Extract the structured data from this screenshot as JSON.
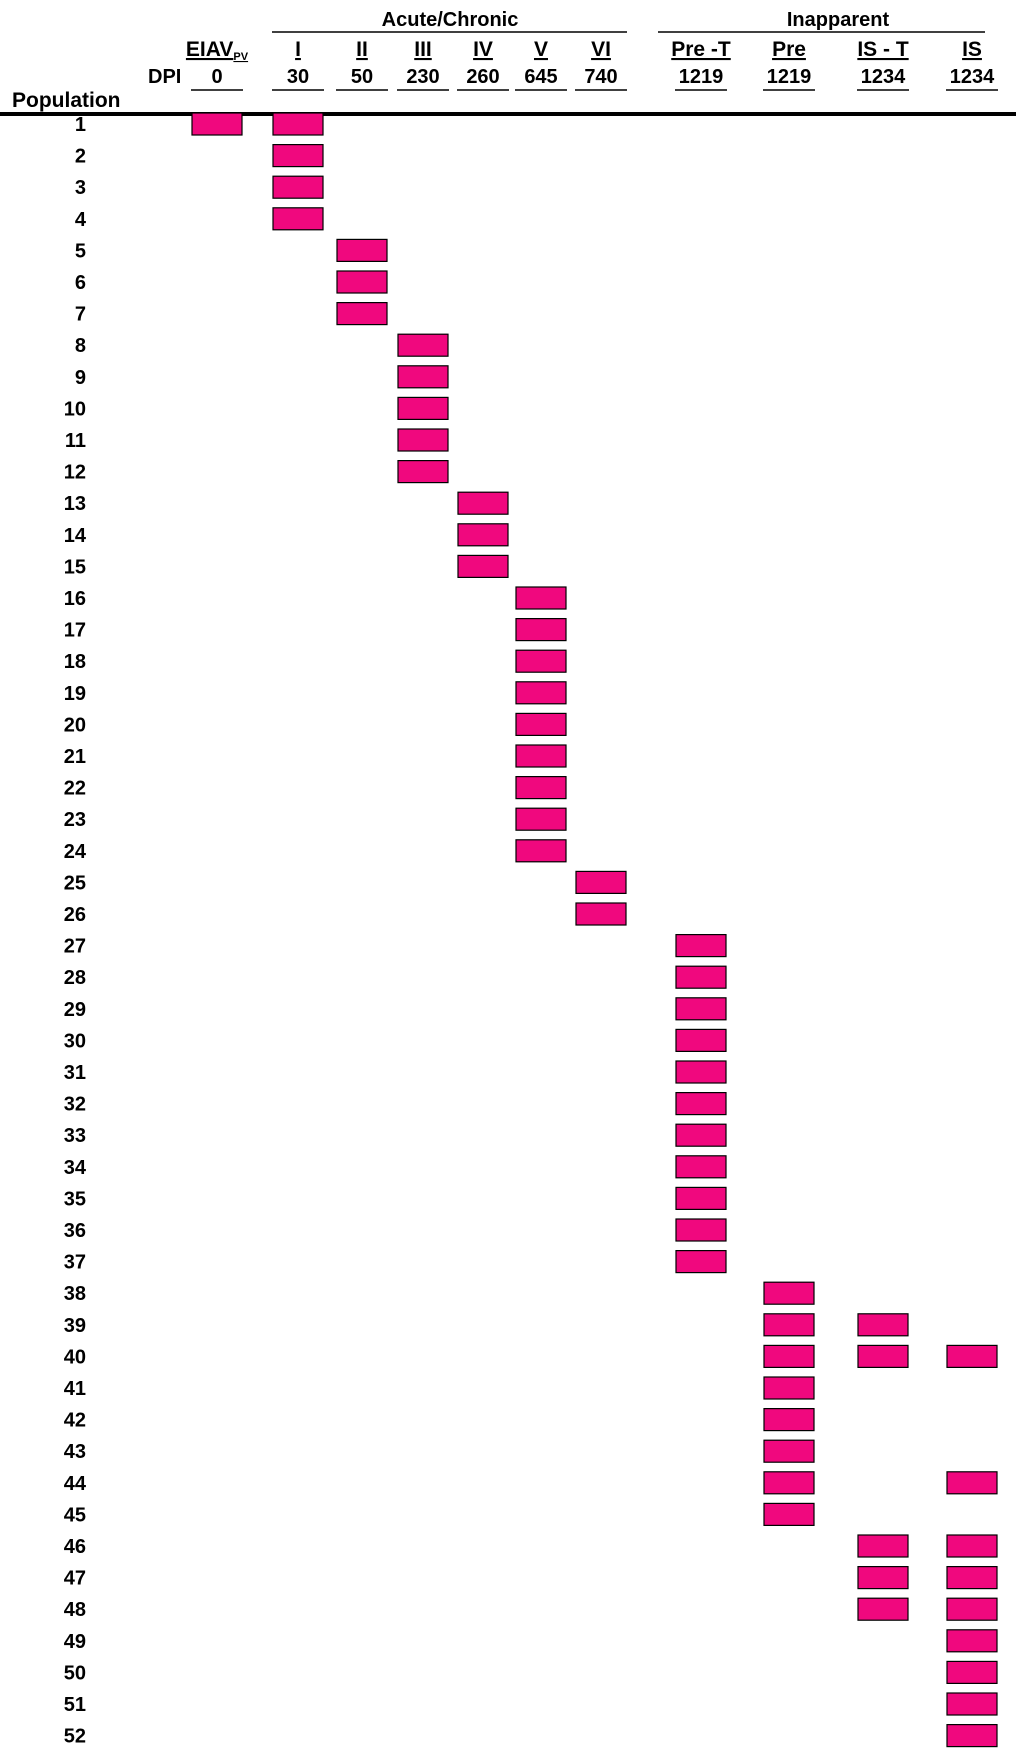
{
  "groups": {
    "acute": "Acute/Chronic",
    "inapparent": "Inapparent"
  },
  "labels": {
    "dpi": "DPI",
    "population": "Population"
  },
  "colors": {
    "bar_fill": "#F0087E",
    "bar_stroke": "#000000",
    "text": "#000000"
  },
  "columns": [
    {
      "label": "EIAV",
      "sub": "PV",
      "dpi": "0"
    },
    {
      "label": "I",
      "dpi": "30"
    },
    {
      "label": "II",
      "dpi": "50"
    },
    {
      "label": "III",
      "dpi": "230"
    },
    {
      "label": "IV",
      "dpi": "260"
    },
    {
      "label": "V",
      "dpi": "645"
    },
    {
      "label": "VI",
      "dpi": "740"
    },
    {
      "label": "Pre -T",
      "dpi": "1219"
    },
    {
      "label": "Pre",
      "dpi": "1219"
    },
    {
      "label": "IS - T",
      "dpi": "1234"
    },
    {
      "label": "IS",
      "dpi": "1234"
    }
  ],
  "populations": [
    {
      "id": "1",
      "cols": [
        0,
        1
      ]
    },
    {
      "id": "2",
      "cols": [
        1
      ]
    },
    {
      "id": "3",
      "cols": [
        1
      ]
    },
    {
      "id": "4",
      "cols": [
        1
      ]
    },
    {
      "id": "5",
      "cols": [
        2
      ]
    },
    {
      "id": "6",
      "cols": [
        2
      ]
    },
    {
      "id": "7",
      "cols": [
        2
      ]
    },
    {
      "id": "8",
      "cols": [
        3
      ]
    },
    {
      "id": "9",
      "cols": [
        3
      ]
    },
    {
      "id": "10",
      "cols": [
        3
      ]
    },
    {
      "id": "11",
      "cols": [
        3
      ]
    },
    {
      "id": "12",
      "cols": [
        3
      ]
    },
    {
      "id": "13",
      "cols": [
        4
      ]
    },
    {
      "id": "14",
      "cols": [
        4
      ]
    },
    {
      "id": "15",
      "cols": [
        4
      ]
    },
    {
      "id": "16",
      "cols": [
        5
      ]
    },
    {
      "id": "17",
      "cols": [
        5
      ]
    },
    {
      "id": "18",
      "cols": [
        5
      ]
    },
    {
      "id": "19",
      "cols": [
        5
      ]
    },
    {
      "id": "20",
      "cols": [
        5
      ]
    },
    {
      "id": "21",
      "cols": [
        5
      ]
    },
    {
      "id": "22",
      "cols": [
        5
      ]
    },
    {
      "id": "23",
      "cols": [
        5
      ]
    },
    {
      "id": "24",
      "cols": [
        5
      ]
    },
    {
      "id": "25",
      "cols": [
        6
      ]
    },
    {
      "id": "26",
      "cols": [
        6
      ]
    },
    {
      "id": "27",
      "cols": [
        7
      ]
    },
    {
      "id": "28",
      "cols": [
        7
      ]
    },
    {
      "id": "29",
      "cols": [
        7
      ]
    },
    {
      "id": "30",
      "cols": [
        7
      ]
    },
    {
      "id": "31",
      "cols": [
        7
      ]
    },
    {
      "id": "32",
      "cols": [
        7
      ]
    },
    {
      "id": "33",
      "cols": [
        7
      ]
    },
    {
      "id": "34",
      "cols": [
        7
      ]
    },
    {
      "id": "35",
      "cols": [
        7
      ]
    },
    {
      "id": "36",
      "cols": [
        7
      ]
    },
    {
      "id": "37",
      "cols": [
        7
      ]
    },
    {
      "id": "38",
      "cols": [
        8
      ]
    },
    {
      "id": "39",
      "cols": [
        8,
        9
      ]
    },
    {
      "id": "40",
      "cols": [
        8,
        9,
        10
      ]
    },
    {
      "id": "41",
      "cols": [
        8
      ]
    },
    {
      "id": "42",
      "cols": [
        8
      ]
    },
    {
      "id": "43",
      "cols": [
        8
      ]
    },
    {
      "id": "44",
      "cols": [
        8,
        10
      ]
    },
    {
      "id": "45",
      "cols": [
        8
      ]
    },
    {
      "id": "46",
      "cols": [
        9,
        10
      ]
    },
    {
      "id": "47",
      "cols": [
        9,
        10
      ]
    },
    {
      "id": "48",
      "cols": [
        9,
        10
      ]
    },
    {
      "id": "49",
      "cols": [
        10
      ]
    },
    {
      "id": "50",
      "cols": [
        10
      ]
    },
    {
      "id": "51",
      "cols": [
        10
      ]
    },
    {
      "id": "52",
      "cols": [
        10
      ]
    }
  ]
}
